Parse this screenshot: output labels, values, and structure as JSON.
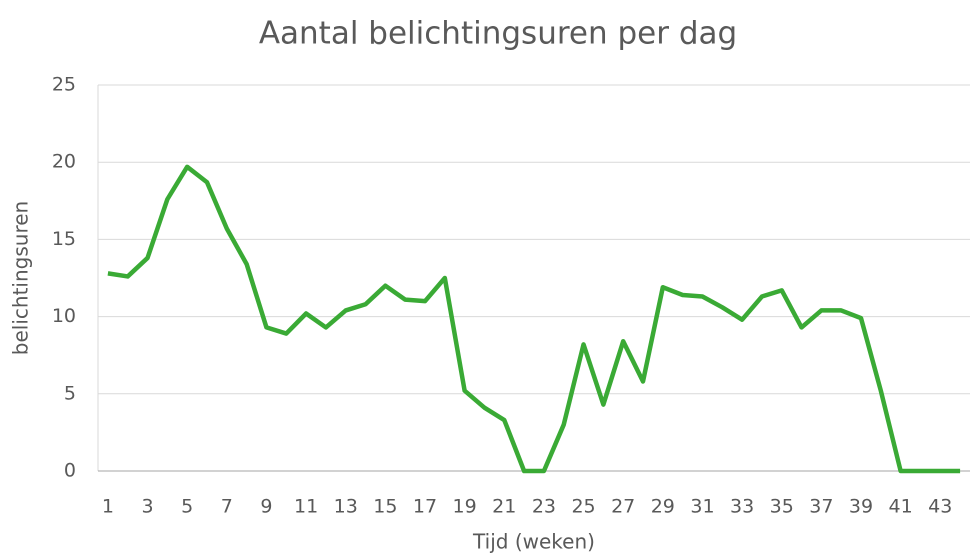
{
  "chart_data": {
    "type": "line",
    "title": "Aantal belichtingsuren per dag",
    "x_label": "Tijd (weken)",
    "y_label": "belichtingsuren",
    "categories": [
      1,
      null,
      3,
      null,
      5,
      null,
      7,
      null,
      9,
      null,
      11,
      null,
      13,
      null,
      15,
      null,
      17,
      null,
      19,
      null,
      21,
      null,
      23,
      null,
      25,
      null,
      27,
      null,
      29,
      null,
      31,
      null,
      33,
      null,
      35,
      null,
      37,
      null,
      39,
      null,
      41,
      null,
      43,
      null
    ],
    "series": [
      {
        "name": "belichtingsuren",
        "color": "#3aaa35",
        "values": [
          12.8,
          12.6,
          13.8,
          17.6,
          19.7,
          18.7,
          15.7,
          13.4,
          9.3,
          8.9,
          10.2,
          9.3,
          10.4,
          10.8,
          12.0,
          11.1,
          11.0,
          12.5,
          5.2,
          4.1,
          3.3,
          0,
          0,
          3.0,
          8.2,
          4.3,
          8.4,
          5.8,
          11.9,
          11.4,
          11.3,
          10.6,
          9.8,
          11.3,
          11.7,
          9.3,
          10.4,
          10.4,
          9.9,
          5.2,
          0,
          0,
          0,
          0
        ]
      }
    ],
    "ylim": [
      0,
      25
    ],
    "yticks": [
      0,
      5,
      10,
      15,
      20,
      25
    ],
    "grid": true
  }
}
